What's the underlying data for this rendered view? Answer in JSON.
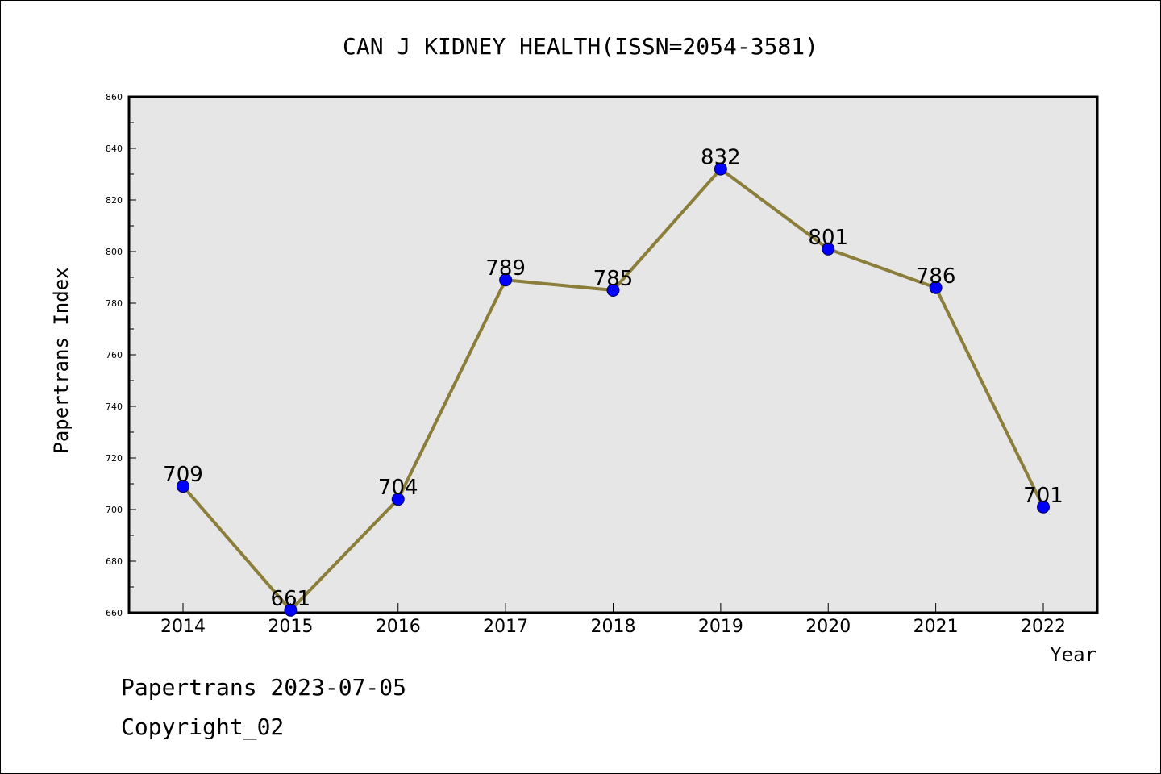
{
  "chart_data": {
    "type": "line",
    "title": "CAN J KIDNEY HEALTH(ISSN=2054-3581)",
    "xlabel": "Year",
    "ylabel": "Papertrans Index",
    "categories": [
      "2014",
      "2015",
      "2016",
      "2017",
      "2018",
      "2019",
      "2020",
      "2021",
      "2022"
    ],
    "series": [
      {
        "values": [
          709,
          661,
          704,
          789,
          785,
          832,
          801,
          786,
          701
        ]
      }
    ],
    "data_labels": [
      "709",
      "661",
      "704",
      "789",
      "785",
      "832",
      "801",
      "786",
      "701"
    ],
    "ylim": [
      660,
      860
    ],
    "y_ticks": [
      "660",
      "680",
      "700",
      "720",
      "740",
      "760",
      "780",
      "800",
      "820",
      "840",
      "860"
    ],
    "grid": false,
    "legend": "none",
    "colors": {
      "line": "#8B7D3A",
      "marker": "#0000FF",
      "plot_background": "#E6E6E6",
      "axis": "#000000"
    }
  },
  "footer": {
    "date": "Papertrans 2023-07-05",
    "copyright": "Copyright_02"
  }
}
